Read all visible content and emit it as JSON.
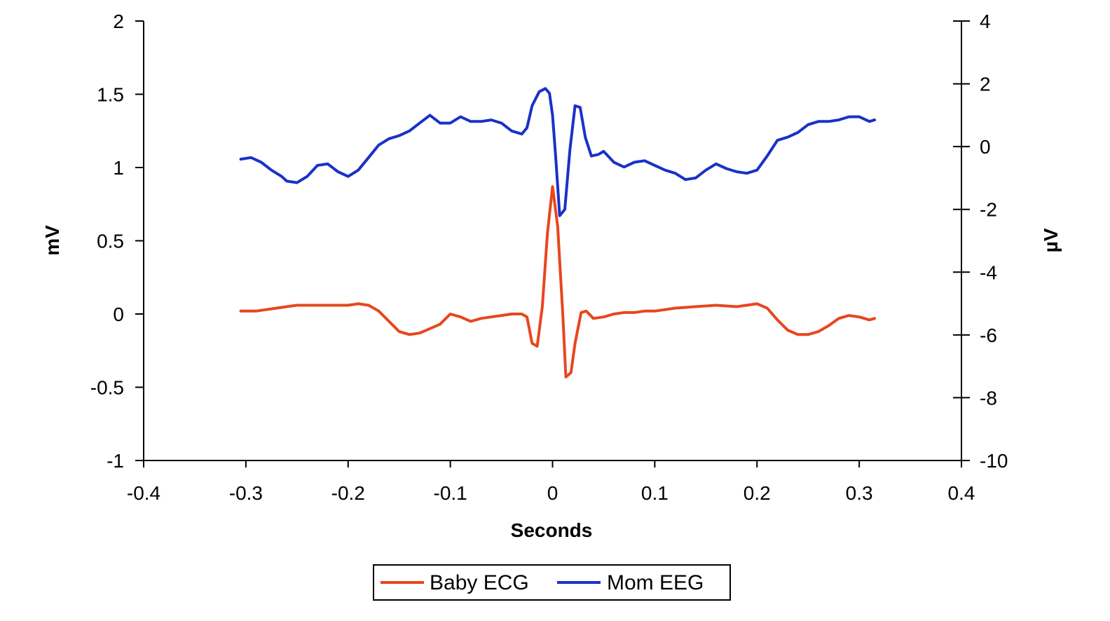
{
  "chart_data": {
    "type": "line",
    "title": "",
    "xlabel": "Seconds",
    "ylabel": "mV",
    "y2label": "µV",
    "xlim": [
      -0.4,
      0.4
    ],
    "ylim": [
      -1,
      2
    ],
    "y2lim": [
      -10,
      4
    ],
    "x_ticks": [
      -0.4,
      -0.3,
      -0.2,
      -0.1,
      0,
      0.1,
      0.2,
      0.3,
      0.4
    ],
    "x_tick_labels": [
      "-0.4",
      "-0.3",
      "-0.2",
      "-0.1",
      "0",
      "0.1",
      "0.2",
      "0.3",
      "0.4"
    ],
    "y_ticks": [
      -1,
      -0.5,
      0,
      0.5,
      1,
      1.5,
      2
    ],
    "y_tick_labels": [
      "-1",
      "-0.5",
      "0",
      "0.5",
      "1",
      "1.5",
      "2"
    ],
    "y2_ticks": [
      -10,
      -8,
      -6,
      -4,
      -2,
      0,
      2,
      4
    ],
    "y2_tick_labels": [
      "-10",
      "-8",
      "-6",
      "-4",
      "-2",
      "0",
      "2",
      "4"
    ],
    "grid": false,
    "legend_position": "bottom-center",
    "series": [
      {
        "name": "Baby ECG",
        "axis": "left",
        "color": "#E8461E",
        "points": [
          [
            -0.305,
            0.02
          ],
          [
            -0.29,
            0.02
          ],
          [
            -0.28,
            0.03
          ],
          [
            -0.27,
            0.04
          ],
          [
            -0.26,
            0.05
          ],
          [
            -0.25,
            0.06
          ],
          [
            -0.24,
            0.06
          ],
          [
            -0.23,
            0.06
          ],
          [
            -0.22,
            0.06
          ],
          [
            -0.21,
            0.06
          ],
          [
            -0.2,
            0.06
          ],
          [
            -0.19,
            0.07
          ],
          [
            -0.18,
            0.06
          ],
          [
            -0.17,
            0.02
          ],
          [
            -0.16,
            -0.05
          ],
          [
            -0.15,
            -0.12
          ],
          [
            -0.14,
            -0.14
          ],
          [
            -0.13,
            -0.13
          ],
          [
            -0.12,
            -0.1
          ],
          [
            -0.11,
            -0.07
          ],
          [
            -0.1,
            0.0
          ],
          [
            -0.09,
            -0.02
          ],
          [
            -0.08,
            -0.05
          ],
          [
            -0.07,
            -0.03
          ],
          [
            -0.06,
            -0.02
          ],
          [
            -0.05,
            -0.01
          ],
          [
            -0.04,
            0.0
          ],
          [
            -0.03,
            0.0
          ],
          [
            -0.025,
            -0.02
          ],
          [
            -0.02,
            -0.2
          ],
          [
            -0.015,
            -0.22
          ],
          [
            -0.01,
            0.05
          ],
          [
            -0.005,
            0.55
          ],
          [
            0.0,
            0.87
          ],
          [
            0.005,
            0.6
          ],
          [
            0.01,
            0.0
          ],
          [
            0.013,
            -0.43
          ],
          [
            0.018,
            -0.4
          ],
          [
            0.022,
            -0.2
          ],
          [
            0.028,
            0.01
          ],
          [
            0.033,
            0.02
          ],
          [
            0.04,
            -0.03
          ],
          [
            0.05,
            -0.02
          ],
          [
            0.06,
            0.0
          ],
          [
            0.07,
            0.01
          ],
          [
            0.08,
            0.01
          ],
          [
            0.09,
            0.02
          ],
          [
            0.1,
            0.02
          ],
          [
            0.12,
            0.04
          ],
          [
            0.14,
            0.05
          ],
          [
            0.16,
            0.06
          ],
          [
            0.18,
            0.05
          ],
          [
            0.19,
            0.06
          ],
          [
            0.2,
            0.07
          ],
          [
            0.21,
            0.04
          ],
          [
            0.22,
            -0.04
          ],
          [
            0.23,
            -0.11
          ],
          [
            0.24,
            -0.14
          ],
          [
            0.25,
            -0.14
          ],
          [
            0.26,
            -0.12
          ],
          [
            0.27,
            -0.08
          ],
          [
            0.28,
            -0.03
          ],
          [
            0.29,
            -0.01
          ],
          [
            0.3,
            -0.02
          ],
          [
            0.31,
            -0.04
          ],
          [
            0.315,
            -0.03
          ]
        ]
      },
      {
        "name": "Mom EEG",
        "axis": "right",
        "color": "#1A31C8",
        "points": [
          [
            -0.305,
            -0.4
          ],
          [
            -0.295,
            -0.35
          ],
          [
            -0.285,
            -0.5
          ],
          [
            -0.275,
            -0.75
          ],
          [
            -0.265,
            -0.95
          ],
          [
            -0.26,
            -1.1
          ],
          [
            -0.25,
            -1.15
          ],
          [
            -0.24,
            -0.95
          ],
          [
            -0.23,
            -0.6
          ],
          [
            -0.22,
            -0.55
          ],
          [
            -0.21,
            -0.8
          ],
          [
            -0.2,
            -0.95
          ],
          [
            -0.19,
            -0.75
          ],
          [
            -0.18,
            -0.35
          ],
          [
            -0.17,
            0.05
          ],
          [
            -0.16,
            0.25
          ],
          [
            -0.15,
            0.35
          ],
          [
            -0.14,
            0.5
          ],
          [
            -0.13,
            0.75
          ],
          [
            -0.12,
            1.0
          ],
          [
            -0.11,
            0.75
          ],
          [
            -0.1,
            0.75
          ],
          [
            -0.09,
            0.95
          ],
          [
            -0.08,
            0.8
          ],
          [
            -0.07,
            0.8
          ],
          [
            -0.06,
            0.85
          ],
          [
            -0.05,
            0.75
          ],
          [
            -0.04,
            0.5
          ],
          [
            -0.03,
            0.4
          ],
          [
            -0.025,
            0.6
          ],
          [
            -0.02,
            1.3
          ],
          [
            -0.013,
            1.75
          ],
          [
            -0.007,
            1.85
          ],
          [
            -0.003,
            1.7
          ],
          [
            0.0,
            1.0
          ],
          [
            0.003,
            -0.3
          ],
          [
            0.007,
            -2.2
          ],
          [
            0.012,
            -2.0
          ],
          [
            0.017,
            -0.1
          ],
          [
            0.022,
            1.3
          ],
          [
            0.027,
            1.25
          ],
          [
            0.032,
            0.3
          ],
          [
            0.038,
            -0.3
          ],
          [
            0.045,
            -0.25
          ],
          [
            0.05,
            -0.15
          ],
          [
            0.06,
            -0.5
          ],
          [
            0.07,
            -0.65
          ],
          [
            0.08,
            -0.5
          ],
          [
            0.09,
            -0.45
          ],
          [
            0.1,
            -0.6
          ],
          [
            0.11,
            -0.75
          ],
          [
            0.12,
            -0.85
          ],
          [
            0.13,
            -1.05
          ],
          [
            0.14,
            -1.0
          ],
          [
            0.15,
            -0.75
          ],
          [
            0.16,
            -0.55
          ],
          [
            0.17,
            -0.7
          ],
          [
            0.18,
            -0.8
          ],
          [
            0.19,
            -0.85
          ],
          [
            0.2,
            -0.75
          ],
          [
            0.21,
            -0.3
          ],
          [
            0.22,
            0.2
          ],
          [
            0.23,
            0.3
          ],
          [
            0.24,
            0.45
          ],
          [
            0.25,
            0.7
          ],
          [
            0.26,
            0.8
          ],
          [
            0.27,
            0.8
          ],
          [
            0.28,
            0.85
          ],
          [
            0.29,
            0.95
          ],
          [
            0.3,
            0.95
          ],
          [
            0.31,
            0.8
          ],
          [
            0.315,
            0.85
          ]
        ]
      }
    ]
  }
}
